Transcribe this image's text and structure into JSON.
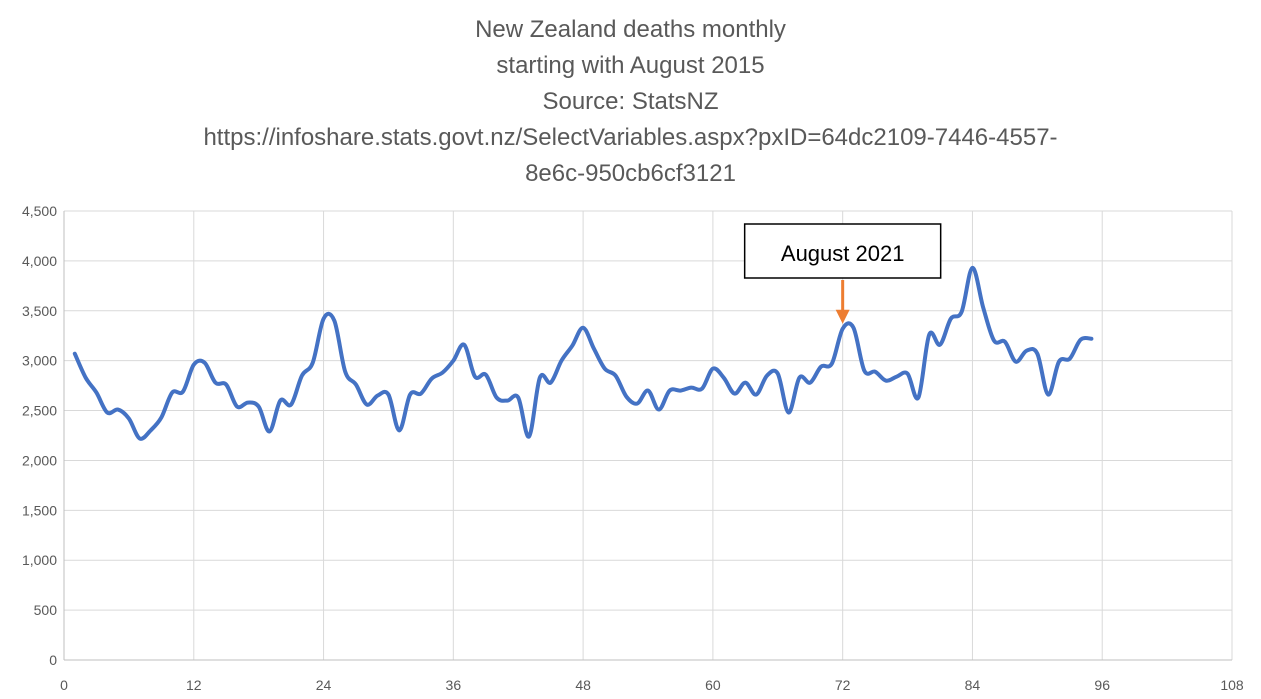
{
  "chart_data": {
    "type": "line",
    "title_lines": [
      "New Zealand deaths monthly",
      "starting with August 2015",
      "Source: StatsNZ",
      "https://infoshare.stats.govt.nz/SelectVariables.aspx?pxID=64dc2109-7446-4557-",
      "8e6c-950cb6cf3121"
    ],
    "xlabel": "",
    "ylabel": "",
    "xlim": [
      0,
      108
    ],
    "ylim": [
      0,
      4500
    ],
    "x_ticks": [
      0,
      12,
      24,
      36,
      48,
      60,
      72,
      84,
      96,
      108
    ],
    "x_tick_labels": [
      "0",
      "12",
      "24",
      "36",
      "48",
      "60",
      "72",
      "84",
      "96",
      "108"
    ],
    "y_ticks": [
      0,
      500,
      1000,
      1500,
      2000,
      2500,
      3000,
      3500,
      4000,
      4500
    ],
    "y_tick_labels": [
      "0",
      "500",
      "1,000",
      "1,500",
      "2,000",
      "2,500",
      "3,000",
      "3,500",
      "4,000",
      "4,500"
    ],
    "grid": true,
    "legend": "none",
    "series": [
      {
        "color": "#4472C4",
        "smooth": true,
        "x": [
          1,
          2,
          3,
          4,
          5,
          6,
          7,
          8,
          9,
          10,
          11,
          12,
          13,
          14,
          15,
          16,
          17,
          18,
          19,
          20,
          21,
          22,
          23,
          24,
          25,
          26,
          27,
          28,
          29,
          30,
          31,
          32,
          33,
          34,
          35,
          36,
          37,
          38,
          39,
          40,
          41,
          42,
          43,
          44,
          45,
          46,
          47,
          48,
          49,
          50,
          51,
          52,
          53,
          54,
          55,
          56,
          57,
          58,
          59,
          60,
          61,
          62,
          63,
          64,
          65,
          66,
          67,
          68,
          69,
          70,
          71,
          72,
          73,
          74,
          75,
          76,
          77,
          78,
          79,
          80,
          81,
          82,
          83,
          84,
          85,
          86,
          87,
          88,
          89,
          90,
          91,
          92,
          93,
          94,
          95
        ],
        "y": [
          3070,
          2830,
          2680,
          2480,
          2510,
          2420,
          2220,
          2300,
          2430,
          2680,
          2690,
          2960,
          2980,
          2780,
          2760,
          2540,
          2580,
          2540,
          2290,
          2600,
          2560,
          2850,
          2980,
          3420,
          3400,
          2890,
          2760,
          2560,
          2650,
          2660,
          2300,
          2660,
          2670,
          2820,
          2880,
          3000,
          3160,
          2840,
          2860,
          2630,
          2600,
          2630,
          2240,
          2830,
          2780,
          3000,
          3150,
          3330,
          3120,
          2920,
          2850,
          2640,
          2570,
          2700,
          2510,
          2700,
          2700,
          2730,
          2720,
          2920,
          2830,
          2670,
          2780,
          2660,
          2850,
          2870,
          2480,
          2830,
          2780,
          2940,
          2970,
          3320,
          3330,
          2900,
          2890,
          2800,
          2840,
          2870,
          2630,
          3260,
          3160,
          3420,
          3490,
          3930,
          3530,
          3200,
          3190,
          2990,
          3100,
          3070,
          2660,
          2990,
          3020,
          3210,
          3220
        ]
      }
    ],
    "annotation": {
      "label": "August 2021",
      "x": 72,
      "y": 3330,
      "arrow_color": "#ED7D31"
    }
  }
}
